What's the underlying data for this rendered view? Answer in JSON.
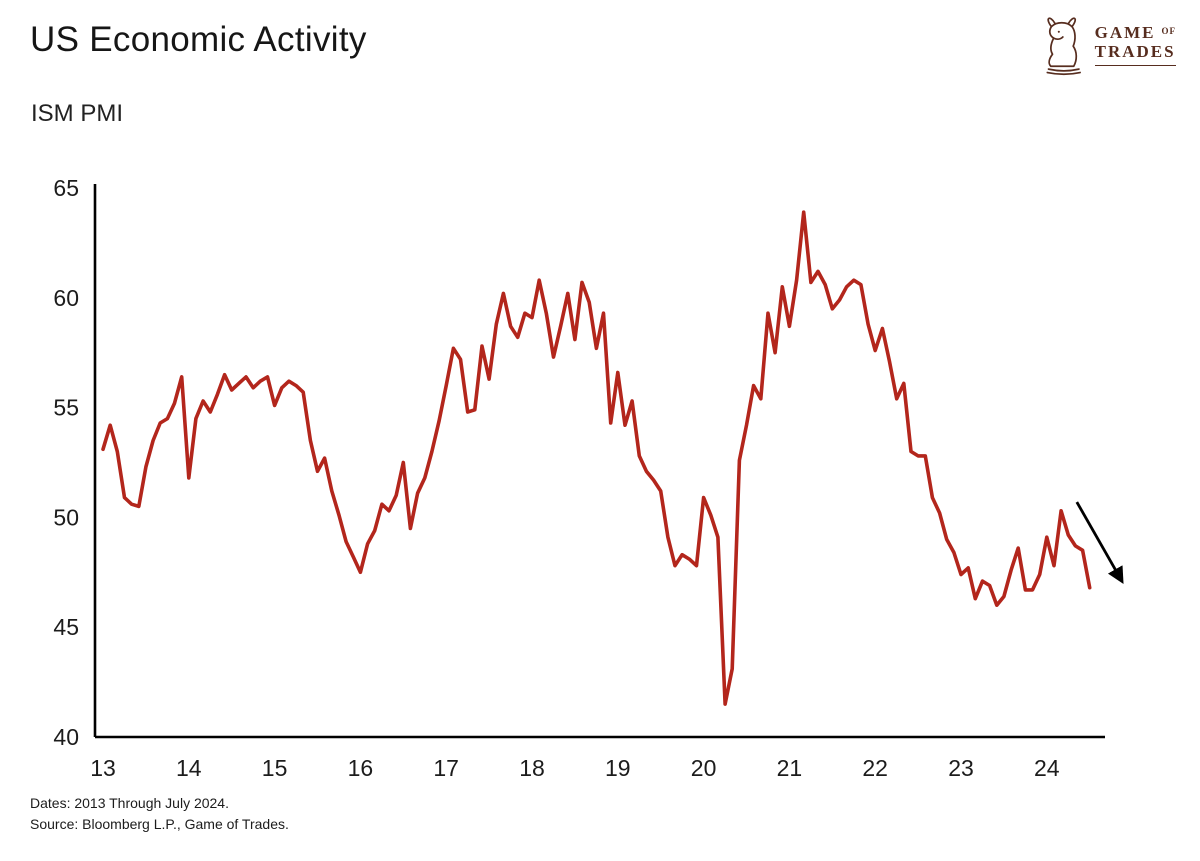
{
  "header": {
    "title": "US Economic Activity",
    "subtitle": "ISM PMI"
  },
  "logo": {
    "name": "Game of Trades",
    "game": "GAME",
    "of": "OF",
    "trades": "TRADES",
    "color": "#572d1f"
  },
  "footer": {
    "dates": "Dates: 2013 Through July 2024.",
    "source": "Source: Bloomberg L.P., Game of Trades."
  },
  "chart_data": {
    "type": "line",
    "title": "US Economic Activity",
    "subtitle": "ISM PMI",
    "x_unit": "month",
    "x_start": "2013-01",
    "x_end": "2024-07",
    "x_tick_labels": [
      "13",
      "14",
      "15",
      "16",
      "17",
      "18",
      "19",
      "20",
      "21",
      "22",
      "23",
      "24"
    ],
    "ylim": [
      40,
      65
    ],
    "y_ticks": [
      65,
      60,
      55,
      50,
      45,
      40
    ],
    "grid": false,
    "legend": false,
    "series": [
      {
        "name": "ISM PMI",
        "color": "#b3261c",
        "values": [
          53.1,
          54.2,
          53.0,
          50.9,
          50.6,
          50.5,
          52.3,
          53.5,
          54.3,
          54.5,
          55.2,
          56.4,
          51.8,
          54.5,
          55.3,
          54.8,
          55.6,
          56.5,
          55.8,
          56.1,
          56.4,
          55.9,
          56.2,
          56.4,
          55.1,
          55.9,
          56.2,
          56.0,
          55.7,
          53.5,
          52.1,
          52.7,
          51.2,
          50.1,
          48.9,
          48.2,
          47.5,
          48.8,
          49.4,
          50.6,
          50.3,
          51.0,
          52.5,
          49.5,
          51.1,
          51.8,
          53.0,
          54.4,
          56.0,
          57.7,
          57.2,
          54.8,
          54.9,
          57.8,
          56.3,
          58.8,
          60.2,
          58.7,
          58.2,
          59.3,
          59.1,
          60.8,
          59.3,
          57.3,
          58.7,
          60.2,
          58.1,
          60.7,
          59.8,
          57.7,
          59.3,
          54.3,
          56.6,
          54.2,
          55.3,
          52.8,
          52.1,
          51.7,
          51.2,
          49.1,
          47.8,
          48.3,
          48.1,
          47.8,
          50.9,
          50.1,
          49.1,
          41.5,
          43.1,
          52.6,
          54.2,
          56.0,
          55.4,
          59.3,
          57.5,
          60.5,
          58.7,
          60.8,
          63.9,
          60.7,
          61.2,
          60.6,
          59.5,
          59.9,
          60.5,
          60.8,
          60.6,
          58.8,
          57.6,
          58.6,
          57.1,
          55.4,
          56.1,
          53.0,
          52.8,
          52.8,
          50.9,
          50.2,
          49.0,
          48.4,
          47.4,
          47.7,
          46.3,
          47.1,
          46.9,
          46.0,
          46.4,
          47.6,
          48.6,
          46.7,
          46.7,
          47.4,
          49.1,
          47.8,
          50.3,
          49.2,
          48.7,
          48.5,
          46.8
        ]
      }
    ],
    "annotations": [
      {
        "type": "arrow",
        "label": "downtrend",
        "x1_month_index": 136.2,
        "y1": 50.7,
        "x2_month_index": 142.5,
        "y2": 47.1,
        "color": "#000000"
      }
    ]
  }
}
